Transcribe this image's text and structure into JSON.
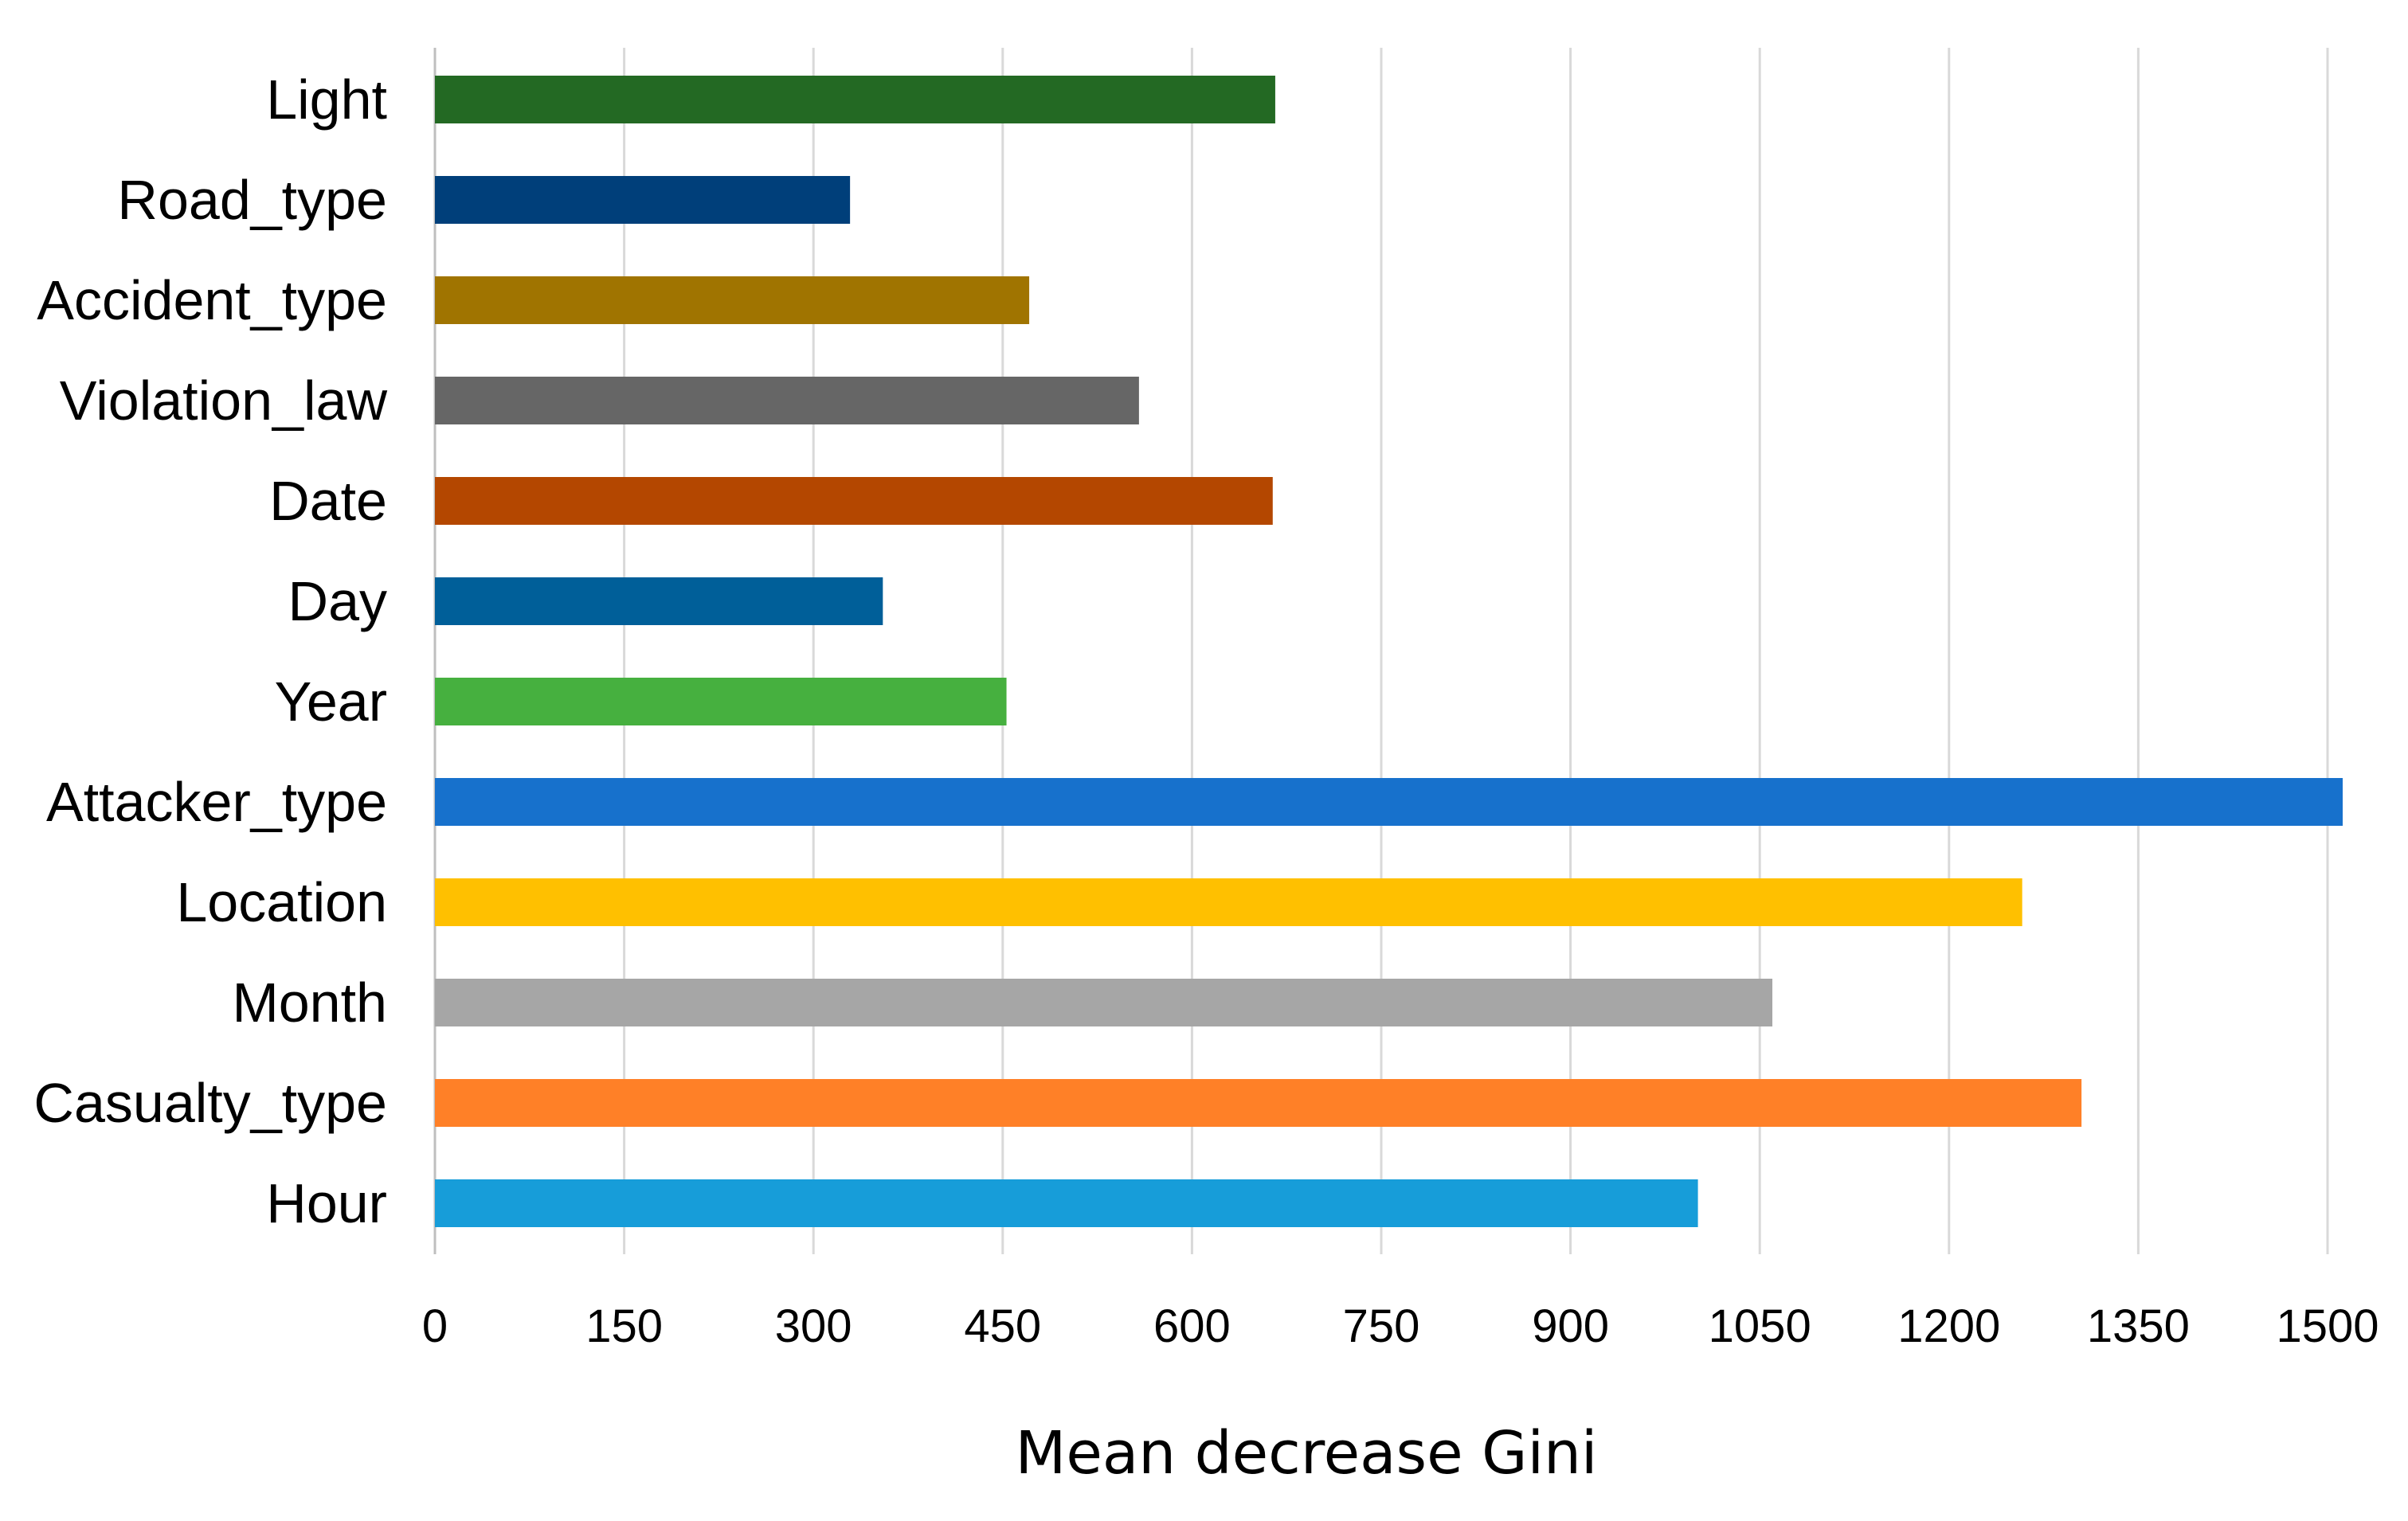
{
  "chart_data": {
    "type": "bar",
    "orientation": "horizontal",
    "title": "",
    "xlabel": "Mean decrease Gini",
    "ylabel": "",
    "xlim": [
      0,
      1500
    ],
    "xticks": [
      "0",
      "150",
      "300",
      "450",
      "600",
      "750",
      "900",
      "1050",
      "1200",
      "1350",
      "1500"
    ],
    "grid": true,
    "legend": "none",
    "categories": [
      "Light",
      "Road_type",
      "Accident_type",
      "Violation_law",
      "Date",
      "Day",
      "Year",
      "Attacker_type",
      "Location",
      "Month",
      "Casualty_type",
      "Hour"
    ],
    "values": [
      666,
      329,
      471,
      558,
      664,
      355,
      453,
      1512,
      1258,
      1060,
      1305,
      1001
    ],
    "colors": [
      "#236923",
      "#003f7a",
      "#a07400",
      "#666666",
      "#b44700",
      "#005f99",
      "#46b03f",
      "#1771cc",
      "#ffc000",
      "#a6a6a6",
      "#ff8027",
      "#179dd9"
    ]
  }
}
